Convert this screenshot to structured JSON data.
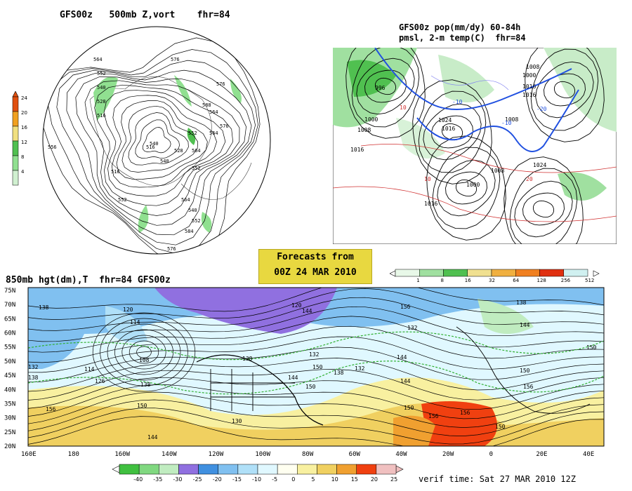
{
  "panel_500mb": {
    "title": "GFS00z   500mb Z,vort    fhr=84",
    "colorbar": [
      "24",
      "20",
      "16",
      "12",
      "8",
      "4"
    ],
    "colorbar_colors": [
      "#e05010",
      "#f0a020",
      "#f0e080",
      "#50c050",
      "#90e090",
      "#d0f0d0"
    ],
    "labels": [
      "576",
      "564",
      "552",
      "540",
      "528",
      "516",
      "516",
      "540",
      "552",
      "564",
      "576",
      "588",
      "556",
      "552",
      "564",
      "576",
      "588",
      "540",
      "528",
      "564",
      "516",
      "552",
      "564",
      "576",
      "584",
      "552",
      "540"
    ]
  },
  "panel_pmsl": {
    "title_line1": "GFS00z pop(mm/dy) 60-84h",
    "title_line2": "pmsl, 2-m temp(C)  fhr=84",
    "colorbar": [
      "1",
      "8",
      "16",
      "32",
      "64",
      "128",
      "256",
      "512"
    ],
    "colorbar_colors": [
      "#e8f8e8",
      "#a0e0a0",
      "#50c050",
      "#f0e090",
      "#f0b040",
      "#f08020",
      "#e03010",
      "#d0f0f0"
    ],
    "labels": [
      "996",
      "1000",
      "1008",
      "1016",
      "1024",
      "1016",
      "1008",
      "1000",
      "1016",
      "1024",
      "1008",
      "1016",
      "1000",
      "1008",
      "1016",
      "-10",
      "-20",
      "-10",
      "10",
      "10",
      "20"
    ]
  },
  "forecast_box": {
    "line1": "Forecasts from",
    "line2": "00Z 24 MAR 2010"
  },
  "panel_850mb": {
    "title": "850mb hgt(dm),T  fhr=84 GFS00z",
    "lat_labels": [
      "75N",
      "70N",
      "65N",
      "60N",
      "55N",
      "50N",
      "45N",
      "40N",
      "35N",
      "30N",
      "25N",
      "20N"
    ],
    "lon_labels": [
      "160E",
      "180",
      "160W",
      "140W",
      "120W",
      "100W",
      "80W",
      "60W",
      "40W",
      "20W",
      "0",
      "20E",
      "40E"
    ],
    "colorbar": [
      "-40",
      "-35",
      "-30",
      "-25",
      "-20",
      "-15",
      "-10",
      "-5",
      "0",
      "5",
      "10",
      "15",
      "20",
      "25"
    ],
    "colorbar_colors": [
      "#40c040",
      "#80d880",
      "#c0ecc0",
      "#9070e0",
      "#4090e0",
      "#80c0f0",
      "#b0e0f8",
      "#e0f8ff",
      "#fffff0",
      "#f8f0a0",
      "#f0d060",
      "#f0a030",
      "#f04010",
      "#f0c0c0"
    ],
    "labels": [
      "138",
      "120",
      "114",
      "108",
      "114",
      "126",
      "132",
      "138",
      "120",
      "144",
      "132",
      "138",
      "144",
      "150",
      "132",
      "138",
      "150",
      "156",
      "132",
      "138",
      "144",
      "150",
      "156",
      "150",
      "144",
      "130",
      "156",
      "150",
      "156",
      "150",
      "144",
      "138",
      "150",
      "144",
      "156"
    ],
    "verif": "verif time: Sat 27 MAR 2010 12Z"
  }
}
